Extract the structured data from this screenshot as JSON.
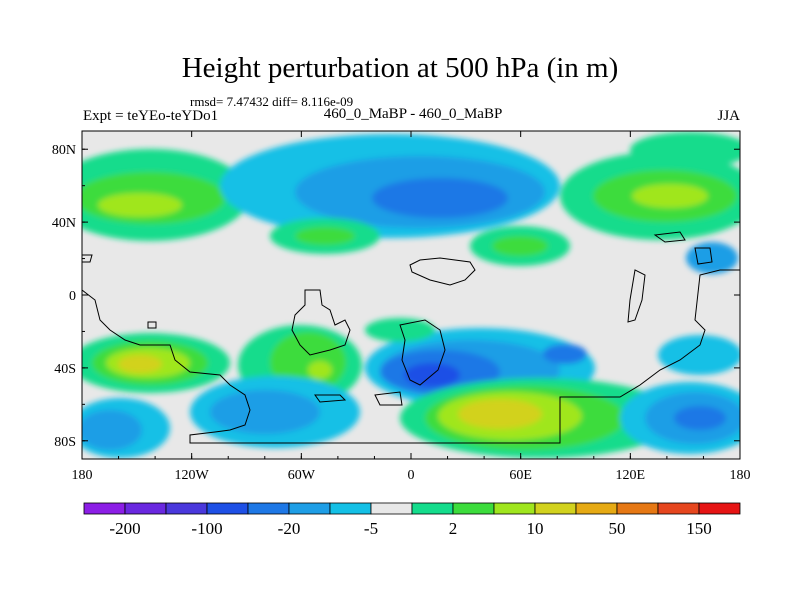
{
  "header": {
    "title": "Height perturbation at 500 hPa (in m)",
    "stats": "rmsd= 7.47432 diff= 8.116e-09",
    "experiment": "Expt = teYEo-teYDo1",
    "subtitle": "460_0_MaBP - 460_0_MaBP",
    "season": "JJA"
  },
  "chart_data": {
    "type": "heatmap",
    "title": "Height perturbation at 500 hPa (in m)",
    "x_ticks": [
      "180",
      "120W",
      "60W",
      "0",
      "60E",
      "120E",
      "180"
    ],
    "y_ticks": [
      "80N",
      "40N",
      "0",
      "40S",
      "80S"
    ],
    "xlim": [
      -180,
      180
    ],
    "ylim": [
      -90,
      90
    ],
    "colorbar": {
      "labels": [
        "-200",
        "-100",
        "-20",
        "-5",
        "2",
        "10",
        "50",
        "150"
      ],
      "colors": [
        "#8c1ee6",
        "#6a28e0",
        "#4a38dc",
        "#1e50e6",
        "#1e78e6",
        "#1e9ee6",
        "#14c0e6",
        "#e8e8e8",
        "#14dc8c",
        "#3cdc3c",
        "#a0e61e",
        "#d2d21e",
        "#e6aa14",
        "#e67814",
        "#e6461e",
        "#e61414"
      ]
    }
  }
}
